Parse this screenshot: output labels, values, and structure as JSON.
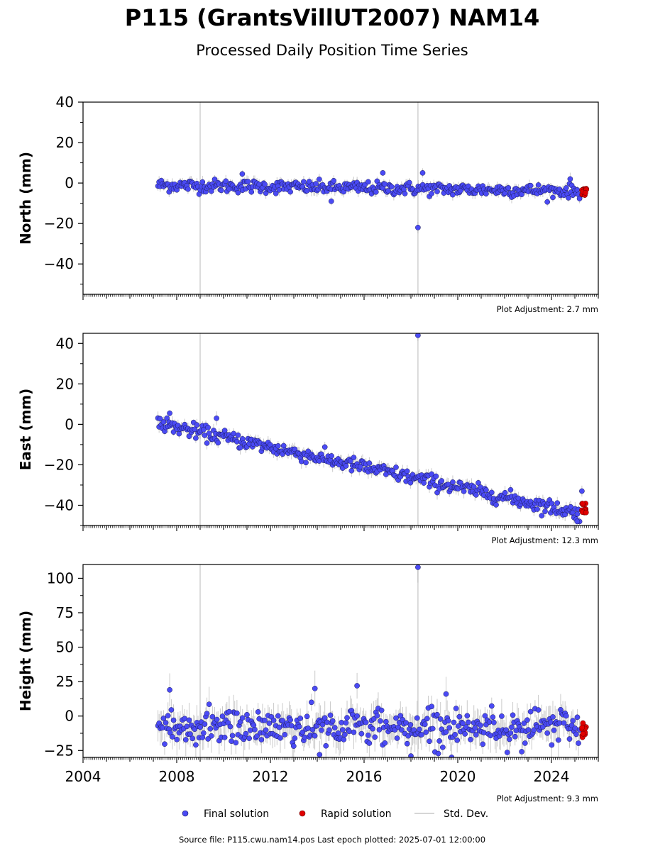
{
  "title": "P115 (GrantsVillUT2007) NAM14",
  "subtitle": "Processed Daily Position Time Series",
  "footer": "Source file: P115.cwu.nam14.pos  Last epoch plotted: 2025-07-01 12:00:00",
  "legend": {
    "final": "Final solution",
    "rapid": "Rapid solution",
    "std": "Std. Dev."
  },
  "colors": {
    "final_fill": "#4a4af4",
    "final_edge": "#1a1a5a",
    "rapid_fill": "#e00000",
    "std_line": "#b4b4b4",
    "event_line": "#d0d0d0"
  },
  "chart_data": [
    {
      "type": "scatter",
      "ylabel": "North (mm)",
      "ylim": [
        -55,
        40
      ],
      "yticks": [
        40,
        20,
        0,
        -20,
        -40
      ],
      "xlim": [
        2004.0,
        2026.0
      ],
      "xticks": [
        2004,
        2008,
        2012,
        2016,
        2020,
        2024
      ],
      "show_xtick_labels": false,
      "event_lines": [
        2009.0,
        2018.3
      ],
      "adjustment": "Plot Adjustment: 2.7 mm",
      "series": [
        {
          "name": "Final solution",
          "trend": {
            "x": [
              2007.2,
              2025.2
            ],
            "y": [
              -1.0,
              -4.0
            ]
          },
          "spread_mm": 1.6,
          "outliers": [
            {
              "x": 2018.3,
              "y": -22
            },
            {
              "x": 2014.6,
              "y": -9
            },
            {
              "x": 2016.8,
              "y": 5
            },
            {
              "x": 2018.5,
              "y": 5
            },
            {
              "x": 2010.8,
              "y": 4.5
            },
            {
              "x": 2024.8,
              "y": 2
            }
          ]
        },
        {
          "name": "Rapid solution",
          "x_range": [
            2025.3,
            2025.5
          ],
          "y_range": [
            -6,
            -2
          ]
        }
      ]
    },
    {
      "type": "scatter",
      "ylabel": "East (mm)",
      "ylim": [
        -50,
        45
      ],
      "yticks": [
        40,
        20,
        0,
        -20,
        -40
      ],
      "xlim": [
        2004.0,
        2026.0
      ],
      "xticks": [
        2004,
        2008,
        2012,
        2016,
        2020,
        2024
      ],
      "show_xtick_labels": false,
      "event_lines": [
        2009.0,
        2018.3
      ],
      "adjustment": "Plot Adjustment: 12.3 mm",
      "series": [
        {
          "name": "Final solution",
          "trend": {
            "x": [
              2007.2,
              2025.2
            ],
            "y": [
              0.5,
              -44.0
            ]
          },
          "spread_mm": 1.8,
          "outliers": [
            {
              "x": 2018.3,
              "y": 44
            },
            {
              "x": 2007.7,
              "y": 5.5
            },
            {
              "x": 2009.7,
              "y": 3
            },
            {
              "x": 2025.3,
              "y": -33
            },
            {
              "x": 2025.1,
              "y": -48
            }
          ]
        },
        {
          "name": "Rapid solution",
          "x_range": [
            2025.3,
            2025.5
          ],
          "y_range": [
            -44,
            -39
          ]
        }
      ]
    },
    {
      "type": "scatter",
      "ylabel": "Height (mm)",
      "ylim": [
        -30,
        110
      ],
      "yticks": [
        100,
        75,
        50,
        25,
        0,
        -25
      ],
      "xlim": [
        2004.0,
        2026.0
      ],
      "xticks": [
        2004,
        2008,
        2012,
        2016,
        2020,
        2024
      ],
      "show_xtick_labels": true,
      "event_lines": [
        2009.0,
        2018.3
      ],
      "adjustment": "Plot Adjustment: 9.3 mm",
      "series": [
        {
          "name": "Final solution",
          "trend": {
            "x": [
              2007.2,
              2025.2
            ],
            "y": [
              -8.0,
              -8.0
            ]
          },
          "spread_mm": 6.5,
          "outliers": [
            {
              "x": 2018.3,
              "y": 108
            },
            {
              "x": 2015.7,
              "y": 22
            },
            {
              "x": 2013.9,
              "y": 20
            },
            {
              "x": 2007.7,
              "y": 19
            },
            {
              "x": 2019.5,
              "y": 16
            },
            {
              "x": 2014.1,
              "y": -28
            },
            {
              "x": 2018.0,
              "y": -29
            }
          ]
        },
        {
          "name": "Rapid solution",
          "x_range": [
            2025.3,
            2025.5
          ],
          "y_range": [
            -16,
            -5
          ]
        }
      ]
    }
  ]
}
